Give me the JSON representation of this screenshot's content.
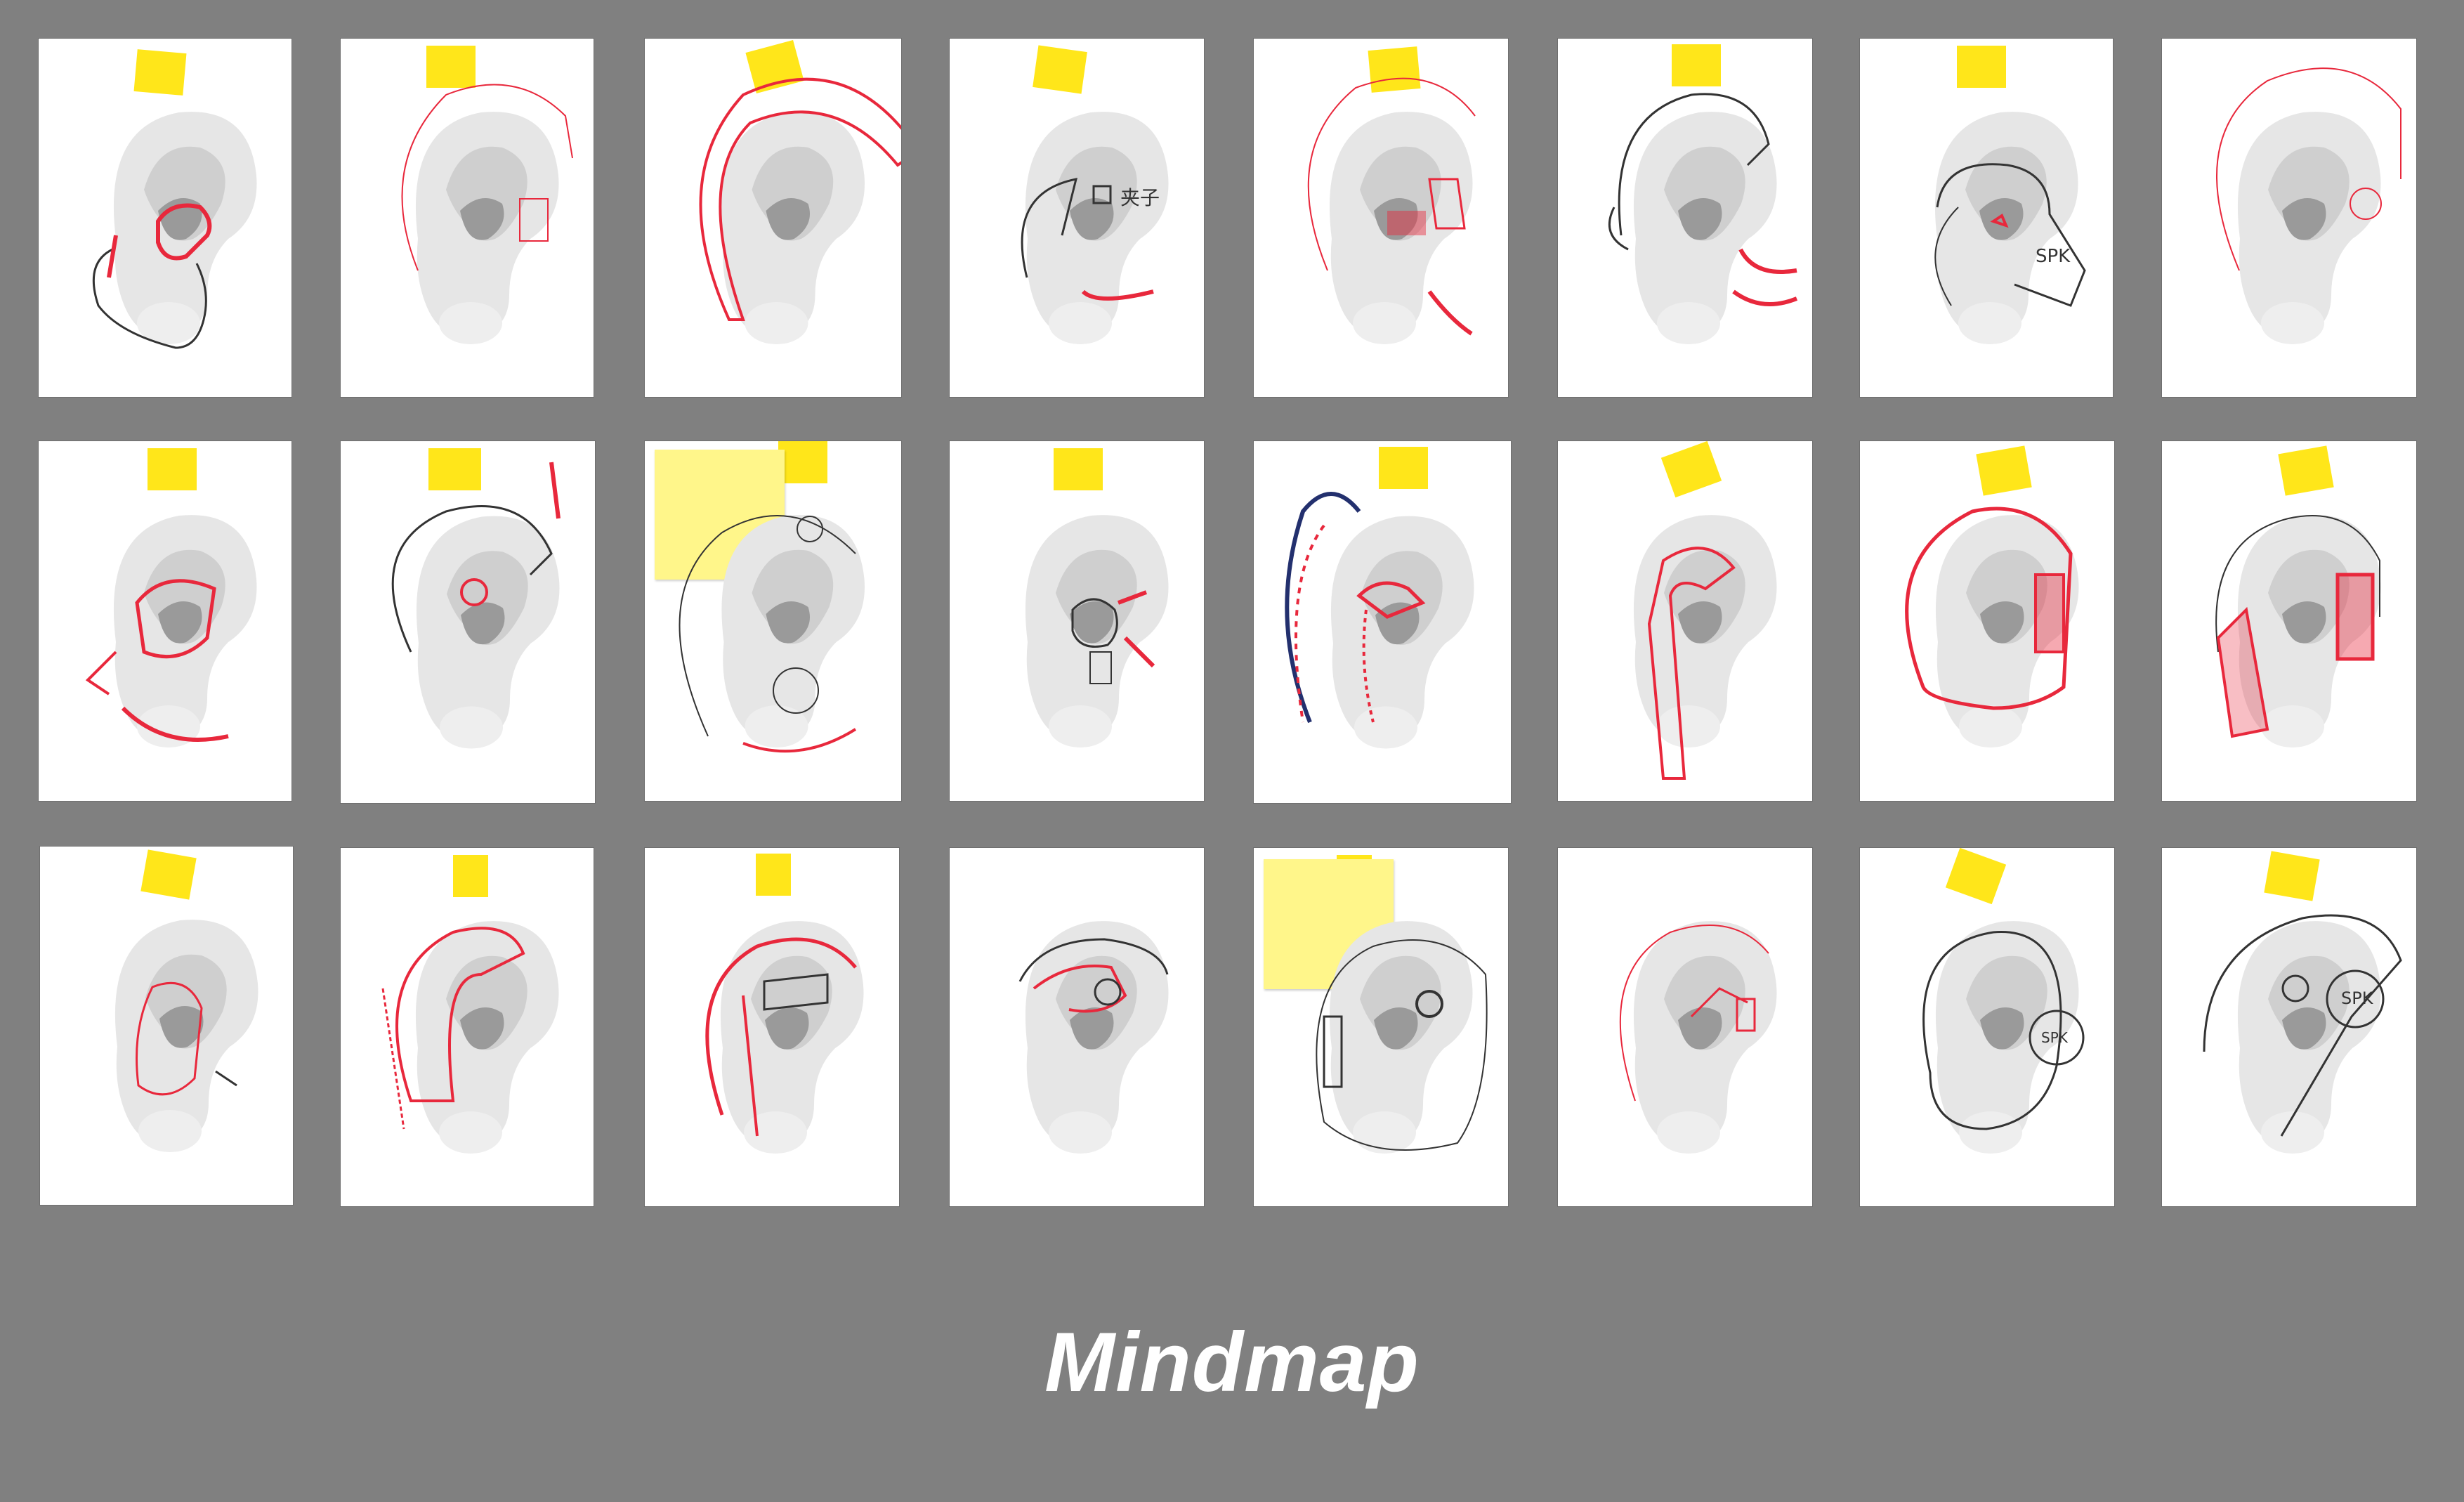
{
  "title": "Mindmap",
  "colors": {
    "background": "#808080",
    "card": "#ffffff",
    "sticky": "#ffe61a",
    "sticky_note": "#fff68a",
    "ink_red": "#e8283c",
    "ink_black": "#333333",
    "ink_blue": "#23306e"
  },
  "sketches": [
    {
      "id": 1,
      "row": 1,
      "col": 1,
      "notes": []
    },
    {
      "id": 2,
      "row": 1,
      "col": 2,
      "notes": []
    },
    {
      "id": 3,
      "row": 1,
      "col": 3,
      "notes": []
    },
    {
      "id": 4,
      "row": 1,
      "col": 4,
      "notes": [
        "夹子"
      ]
    },
    {
      "id": 5,
      "row": 1,
      "col": 5,
      "notes": []
    },
    {
      "id": 6,
      "row": 1,
      "col": 6,
      "notes": []
    },
    {
      "id": 7,
      "row": 1,
      "col": 7,
      "notes": [
        "SPK"
      ]
    },
    {
      "id": 8,
      "row": 1,
      "col": 8,
      "notes": []
    },
    {
      "id": 9,
      "row": 2,
      "col": 1,
      "notes": []
    },
    {
      "id": 10,
      "row": 2,
      "col": 2,
      "notes": []
    },
    {
      "id": 11,
      "row": 2,
      "col": 3,
      "notes": []
    },
    {
      "id": 12,
      "row": 2,
      "col": 4,
      "notes": []
    },
    {
      "id": 13,
      "row": 2,
      "col": 5,
      "notes": []
    },
    {
      "id": 14,
      "row": 2,
      "col": 6,
      "notes": []
    },
    {
      "id": 15,
      "row": 2,
      "col": 7,
      "notes": []
    },
    {
      "id": 16,
      "row": 2,
      "col": 8,
      "notes": []
    },
    {
      "id": 17,
      "row": 3,
      "col": 1,
      "notes": []
    },
    {
      "id": 18,
      "row": 3,
      "col": 2,
      "notes": []
    },
    {
      "id": 19,
      "row": 3,
      "col": 3,
      "notes": []
    },
    {
      "id": 20,
      "row": 3,
      "col": 4,
      "notes": []
    },
    {
      "id": 21,
      "row": 3,
      "col": 5,
      "notes": []
    },
    {
      "id": 22,
      "row": 3,
      "col": 6,
      "notes": []
    },
    {
      "id": 23,
      "row": 3,
      "col": 7,
      "notes": [
        "SPK"
      ]
    },
    {
      "id": 24,
      "row": 3,
      "col": 8,
      "notes": [
        "SPK"
      ]
    }
  ]
}
